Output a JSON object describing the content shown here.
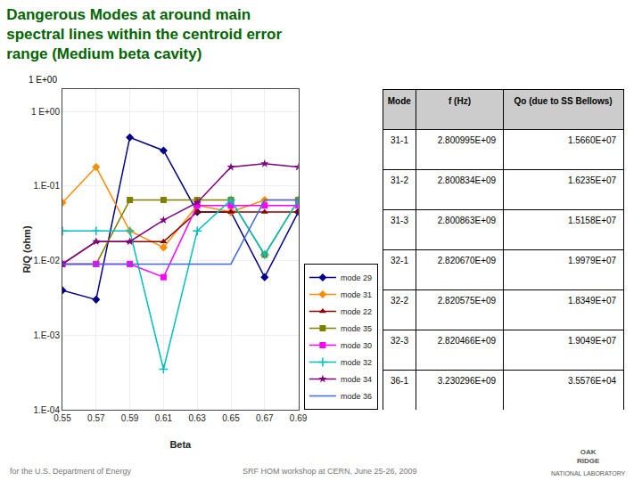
{
  "chart_data": [
    {
      "type": "line",
      "title": "Dangerous Modes at around main\nspectral lines within the centroid error\nrange (Medium beta cavity)",
      "x_label": "Beta",
      "y_label": "R/Q (ohm)",
      "x": [
        0.55,
        0.57,
        0.59,
        0.61,
        0.63,
        0.65,
        0.67,
        0.69
      ],
      "series": [
        {
          "name": "mode 29",
          "color": "#00008B",
          "marker": "diamond",
          "values": [
            0.004,
            0.003,
            0.45,
            0.3,
            0.045,
            0.045,
            0.006,
            0.045
          ]
        },
        {
          "name": "mode 31",
          "color": "#FF8C00",
          "marker": "diamond",
          "values": [
            0.06,
            0.18,
            0.025,
            0.015,
            0.055,
            0.045,
            0.065,
            0.065
          ]
        },
        {
          "name": "mode 22",
          "color": "#8B0000",
          "marker": "triangle",
          "values": [
            0.009,
            0.018,
            0.018,
            0.018,
            0.045,
            0.045,
            0.045,
            0.045
          ]
        },
        {
          "name": "mode 35",
          "color": "#808000",
          "marker": "square",
          "values": [
            0.009,
            0.009,
            0.065,
            0.065,
            0.065,
            0.065,
            0.012,
            0.065
          ]
        },
        {
          "name": "mode 30",
          "color": "#FF00FF",
          "marker": "square",
          "values": [
            0.009,
            0.009,
            0.009,
            0.006,
            0.055,
            0.055,
            0.055,
            0.055
          ]
        },
        {
          "name": "mode 32",
          "color": "#00BFBF",
          "marker": "plus",
          "values": [
            0.025,
            0.025,
            0.025,
            0.00035,
            0.025,
            0.065,
            0.012,
            0.065
          ]
        },
        {
          "name": "mode 34",
          "color": "#800080",
          "marker": "star",
          "values": [
            0.009,
            0.018,
            0.018,
            0.035,
            0.06,
            0.18,
            0.2,
            0.18
          ]
        },
        {
          "name": "mode 36",
          "color": "#4169E1",
          "marker": "none",
          "values": [
            0.009,
            0.009,
            0.009,
            0.009,
            0.009,
            0.009,
            0.065,
            0.065
          ]
        }
      ],
      "xlim": [
        0.55,
        0.69
      ],
      "xticks": [
        0.55,
        0.57,
        0.59,
        0.61,
        0.63,
        0.65,
        0.67,
        0.69
      ],
      "ylim": [
        0.0001,
        2
      ],
      "yticks": [
        {
          "value": 0.0001,
          "label": "1.E-04"
        },
        {
          "value": 0.001,
          "label": "1.E-03"
        },
        {
          "value": 0.01,
          "label": "1.E-02"
        },
        {
          "value": 0.1,
          "label": "1.E-01"
        },
        {
          "value": 1,
          "label": "1 E+00"
        }
      ],
      "log": "y",
      "grid": true,
      "legend": "lower right",
      "annotations": [
        "1 E+00",
        "for the U.S. Department of Energy",
        "SRF HOM workshop at CERN, June 25-26, 2009",
        "OAK\nRIDGE",
        "NATIONAL LABORATORY"
      ]
    },
    {
      "type": "table",
      "columns": [
        "Mode",
        "f (Hz)",
        "Qo (due to SS Bellows)"
      ],
      "rows": [
        [
          "31-1",
          "2.800995E+09",
          "1.5660E+07"
        ],
        [
          "31-2",
          "2.800834E+09",
          "1.6235E+07"
        ],
        [
          "31-3",
          "2.800863E+09",
          "1.5158E+07"
        ],
        [
          "32-1",
          "2.820670E+09",
          "1.9979E+07"
        ],
        [
          "32-2",
          "2.820575E+09",
          "1.8349E+07"
        ],
        [
          "32-3",
          "2.820466E+09",
          "1.9049E+07"
        ],
        [
          "36-1",
          "3.230296E+09",
          "3.5576E+04"
        ]
      ]
    }
  ]
}
